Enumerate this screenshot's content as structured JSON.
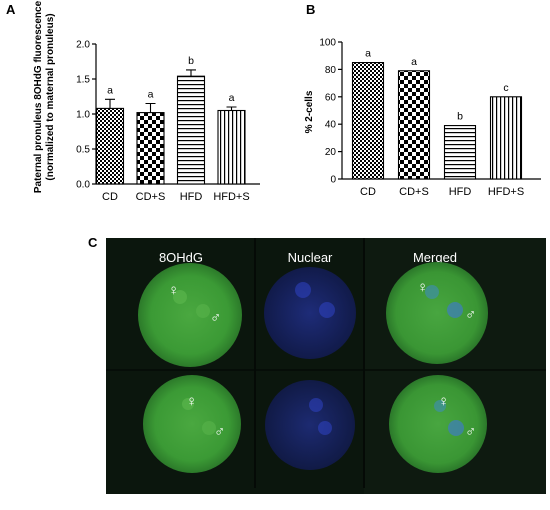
{
  "panels": {
    "a": "A",
    "b": "B",
    "c": "C"
  },
  "chart_data": [
    {
      "panel": "A",
      "type": "bar",
      "categories": [
        "CD",
        "CD+S",
        "HFD",
        "HFD+S"
      ],
      "values": [
        1.08,
        1.02,
        1.54,
        1.05
      ],
      "errors": [
        0.13,
        0.13,
        0.09,
        0.05
      ],
      "significance": [
        "a",
        "a",
        "b",
        "a"
      ],
      "patterns": [
        "checker-fine",
        "checker-coarse",
        "hstripe",
        "vstripe"
      ],
      "ylabel_line1": "Paternal pronuleus 8OHdG fluorescence",
      "ylabel_line2": "(normalized to maternal pronuleus)",
      "ylim": [
        0,
        2.0
      ],
      "yticks": [
        "0.0",
        "0.5",
        "1.0",
        "1.5",
        "2.0"
      ],
      "ytick_values": [
        0,
        0.5,
        1.0,
        1.5,
        2.0
      ]
    },
    {
      "panel": "B",
      "type": "bar",
      "categories": [
        "CD",
        "CD+S",
        "HFD",
        "HFD+S"
      ],
      "values": [
        85,
        79,
        39,
        60
      ],
      "significance": [
        "a",
        "a",
        "b",
        "c"
      ],
      "patterns": [
        "checker-fine",
        "checker-coarse",
        "hstripe",
        "vstripe"
      ],
      "ylabel": "% 2-cells",
      "ylim": [
        0,
        100
      ],
      "yticks": [
        "0",
        "20",
        "40",
        "60",
        "80",
        "100"
      ],
      "ytick_values": [
        0,
        20,
        40,
        60,
        80,
        100
      ]
    }
  ],
  "micrograph": {
    "columns": [
      "8OHdG",
      "Nuclear",
      "Merged"
    ],
    "female_symbol": "♀",
    "male_symbol": "♂",
    "colors": {
      "background": "#0b160d",
      "green_cell": "#3b9a35",
      "blue_cell": "#1c2a8c"
    }
  }
}
